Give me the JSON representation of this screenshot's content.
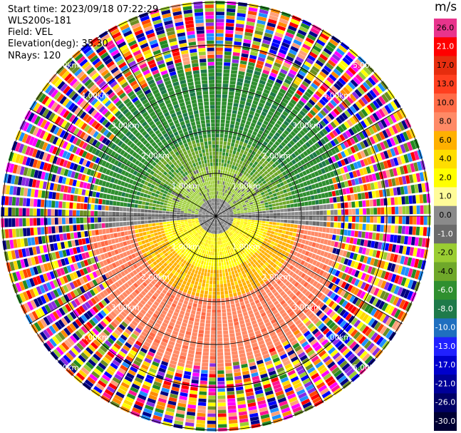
{
  "header": {
    "start_time": "Start time: 2023/09/18 07:22:29",
    "instrument": "WLS200s-181",
    "field": "Field: VEL",
    "elevation": "Elevation(deg): 35.30",
    "nrays": "NRays: 120"
  },
  "colorbar": {
    "unit": "m/s",
    "bins": [
      {
        "label": "26.0",
        "color": "#e8348c",
        "text": "#000000"
      },
      {
        "label": "21.0",
        "color": "#ff0000",
        "text": "#ffffff"
      },
      {
        "label": "17.0",
        "color": "#e62d0e",
        "text": "#000000"
      },
      {
        "label": "13.0",
        "color": "#ff3f1f",
        "text": "#000000"
      },
      {
        "label": "10.0",
        "color": "#ff6b47",
        "text": "#000000"
      },
      {
        "label": "8.0",
        "color": "#ff8a66",
        "text": "#000000"
      },
      {
        "label": "6.0",
        "color": "#ffb000",
        "text": "#000000"
      },
      {
        "label": "4.0",
        "color": "#ffdd00",
        "text": "#000000"
      },
      {
        "label": "2.0",
        "color": "#ffff00",
        "text": "#000000"
      },
      {
        "label": "1.0",
        "color": "#fffb99",
        "text": "#000000"
      },
      {
        "label": "0.0",
        "color": "#8a8a8a",
        "text": "#000000"
      },
      {
        "label": "-1.0",
        "color": "#6b6b6b",
        "text": "#ffffff"
      },
      {
        "label": "-2.0",
        "color": "#9acd32",
        "text": "#000000"
      },
      {
        "label": "-4.0",
        "color": "#6fa82a",
        "text": "#000000"
      },
      {
        "label": "-6.0",
        "color": "#2f8f2f",
        "text": "#ffffff"
      },
      {
        "label": "-8.0",
        "color": "#1e7a4a",
        "text": "#ffffff"
      },
      {
        "label": "-10.0",
        "color": "#1f6fbf",
        "text": "#ffffff"
      },
      {
        "label": "-13.0",
        "color": "#2020ff",
        "text": "#ffffff"
      },
      {
        "label": "-17.0",
        "color": "#0000cc",
        "text": "#ffffff"
      },
      {
        "label": "-21.0",
        "color": "#000099",
        "text": "#ffffff"
      },
      {
        "label": "-26.0",
        "color": "#000066",
        "text": "#ffffff"
      },
      {
        "label": "-30.0",
        "color": "#000033",
        "text": "#ffffff"
      }
    ]
  },
  "range_labels": [
    "1.00km",
    "2.00km",
    "3.00km",
    "4.00km",
    "5.00km"
  ],
  "ppi": {
    "center_color": "#6b6b6b",
    "ring_color": "#000000",
    "noise_palette": [
      "#ff1493",
      "#ff00ff",
      "#ff0000",
      "#0000ff",
      "#000080",
      "#ffff00",
      "#ff8c00",
      "#ffa07a",
      "#228b22",
      "#9acd32",
      "#8a2be2",
      "#00008b",
      "#ff4500",
      "#6b8e23",
      "#1e90ff",
      "#ffd700"
    ]
  }
}
